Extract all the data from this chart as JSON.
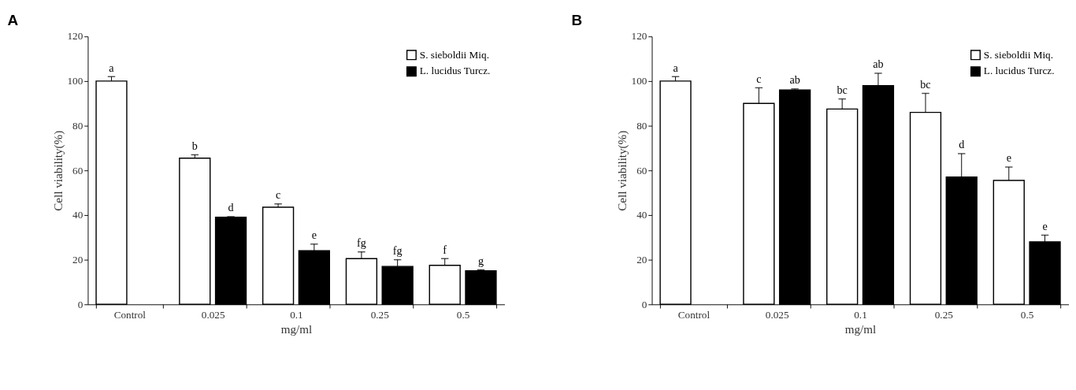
{
  "chart_data": [
    {
      "type": "bar",
      "title": "A",
      "xlabel": "mg/ml",
      "ylabel": "Cell viability(%)",
      "categories": [
        "Control",
        "0.025",
        "0.1",
        "0.25",
        "0.5"
      ],
      "ylim": [
        0,
        120
      ],
      "yticks": [
        0,
        20,
        40,
        60,
        80,
        100,
        120
      ],
      "grid": false,
      "legend": "top right",
      "series": [
        {
          "name": "S. sieboldii Miq.",
          "color": "#ffffff",
          "values": [
            100,
            65.5,
            43.5,
            20.5,
            17.5
          ],
          "errors": [
            [
              100,
              102
            ],
            [
              65.5,
              67
            ],
            [
              43.5,
              45
            ],
            [
              20.5,
              23.5
            ],
            [
              17.5,
              20.5
            ]
          ],
          "value_labels": [
            "a",
            "b",
            "c",
            "fg",
            "f"
          ]
        },
        {
          "name": "L. lucidus Turcz.",
          "color": "#000000",
          "values": [
            null,
            39,
            24,
            17,
            15
          ],
          "errors": [
            null,
            [
              39,
              39.3
            ],
            [
              24,
              27
            ],
            [
              17,
              20
            ],
            [
              15,
              15.5
            ]
          ],
          "value_labels": [
            null,
            "d",
            "e",
            "fg",
            "g"
          ]
        }
      ]
    },
    {
      "type": "bar",
      "title": "B",
      "xlabel": "mg/ml",
      "ylabel": "Cell viability(%)",
      "categories": [
        "Control",
        "0.025",
        "0.1",
        "0.25",
        "0.5"
      ],
      "ylim": [
        0,
        120
      ],
      "yticks": [
        0,
        20,
        40,
        60,
        80,
        100,
        120
      ],
      "grid": false,
      "legend": "top right",
      "series": [
        {
          "name": "S. sieboldii Miq.",
          "color": "#ffffff",
          "values": [
            100,
            90,
            87.5,
            86,
            55.5
          ],
          "errors": [
            [
              100,
              102
            ],
            [
              90,
              97
            ],
            [
              87.5,
              92
            ],
            [
              86,
              94.5
            ],
            [
              55.5,
              61.5
            ]
          ],
          "value_labels": [
            "a",
            "c",
            "bc",
            "bc",
            "e"
          ]
        },
        {
          "name": "L. lucidus Turcz.",
          "color": "#000000",
          "values": [
            null,
            96,
            98,
            57,
            28
          ],
          "errors": [
            null,
            [
              96,
              96.5
            ],
            [
              98,
              103.5
            ],
            [
              57,
              67.5
            ],
            [
              28,
              31
            ]
          ],
          "value_labels": [
            null,
            "ab",
            "ab",
            "d",
            "e"
          ]
        }
      ]
    }
  ]
}
